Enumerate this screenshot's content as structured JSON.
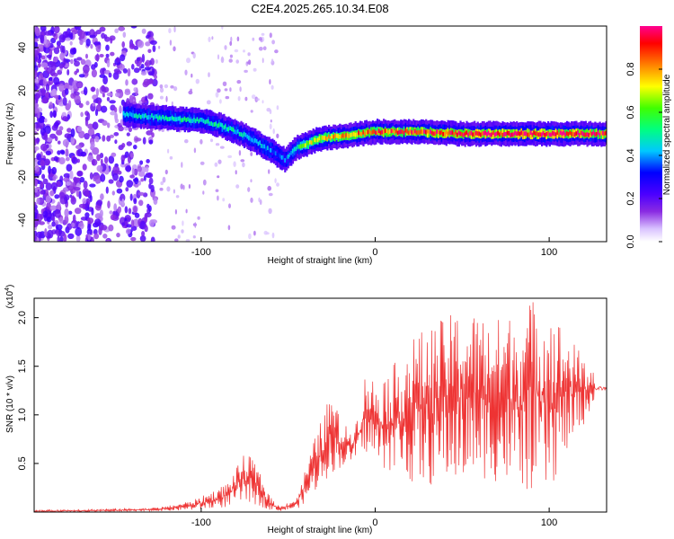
{
  "title": "C2E4.2025.265.10.34.E08",
  "chart_data": [
    {
      "type": "heatmap",
      "name": "spectrogram",
      "xlabel": "Height of straight line (km)",
      "ylabel": "Frequency (Hz)",
      "xlim": [
        -196,
        133
      ],
      "ylim": [
        -50,
        50
      ],
      "xticks": [
        -100,
        0,
        100
      ],
      "yticks": [
        -40,
        -20,
        0,
        20,
        40
      ],
      "colorbar": {
        "label": "Normalized spectral amplitude",
        "range": [
          0,
          1
        ],
        "ticks": [
          0.0,
          0.2,
          0.4,
          0.6,
          0.8
        ],
        "tick_labels": [
          "0.0",
          "0.2",
          "0.4",
          "0.6",
          "0.8"
        ]
      },
      "ridge": {
        "x": [
          -145,
          -130,
          -115,
          -100,
          -90,
          -80,
          -70,
          -60,
          -52,
          -45,
          -40,
          -35,
          -30,
          -20,
          -10,
          0,
          20,
          50,
          80,
          100,
          133
        ],
        "freq": [
          9,
          8,
          7,
          6,
          4,
          1,
          -3,
          -8,
          -12,
          -6,
          -5,
          -3,
          -2,
          -1,
          0,
          1,
          1,
          0,
          0,
          0,
          0
        ],
        "peak_amplitude": [
          0.45,
          0.45,
          0.5,
          0.45,
          0.5,
          0.45,
          0.45,
          0.4,
          0.35,
          0.55,
          0.65,
          0.7,
          0.75,
          0.8,
          0.85,
          0.85,
          0.9,
          0.95,
          0.95,
          0.95,
          0.95
        ]
      }
    },
    {
      "type": "line",
      "name": "snr",
      "xlabel": "Height of straight line (km)",
      "ylabel": "SNR (10 * v/v)",
      "multiplier_label": "(x10",
      "multiplier_exp": "4",
      "xlim": [
        -196,
        133
      ],
      "ylim": [
        0,
        2.2
      ],
      "xticks": [
        -100,
        0,
        100
      ],
      "yticks": [
        0.5,
        1.0,
        1.5,
        2.0
      ],
      "ytick_labels": [
        "0.5",
        "1.0",
        "1.5",
        "2.0"
      ],
      "color": "#ee3333",
      "envelope": {
        "x": [
          -196,
          -160,
          -130,
          -120,
          -105,
          -95,
          -85,
          -80,
          -75,
          -70,
          -65,
          -60,
          -55,
          -45,
          -40,
          -35,
          -30,
          -25,
          -20,
          -15,
          -10,
          -5,
          0,
          10,
          20,
          30,
          40,
          50,
          60,
          70,
          80,
          90,
          100,
          110,
          120,
          126,
          133
        ],
        "upper": [
          0.02,
          0.03,
          0.04,
          0.06,
          0.12,
          0.2,
          0.3,
          0.45,
          0.6,
          0.55,
          0.35,
          0.15,
          0.06,
          0.15,
          0.45,
          0.75,
          1.0,
          1.25,
          0.95,
          0.85,
          1.0,
          1.5,
          1.35,
          1.5,
          1.8,
          1.9,
          2.0,
          2.1,
          2.05,
          2.0,
          2.05,
          2.2,
          2.15,
          1.85,
          1.6,
          1.45,
          1.3
        ],
        "lower": [
          0.0,
          0.0,
          0.01,
          0.01,
          0.02,
          0.03,
          0.05,
          0.08,
          0.1,
          0.08,
          0.05,
          0.02,
          0.01,
          0.03,
          0.1,
          0.2,
          0.3,
          0.4,
          0.45,
          0.5,
          0.55,
          0.6,
          0.5,
          0.4,
          0.3,
          0.25,
          0.3,
          0.3,
          0.35,
          0.3,
          0.25,
          0.2,
          0.2,
          0.6,
          0.9,
          1.15,
          1.25
        ]
      }
    }
  ]
}
